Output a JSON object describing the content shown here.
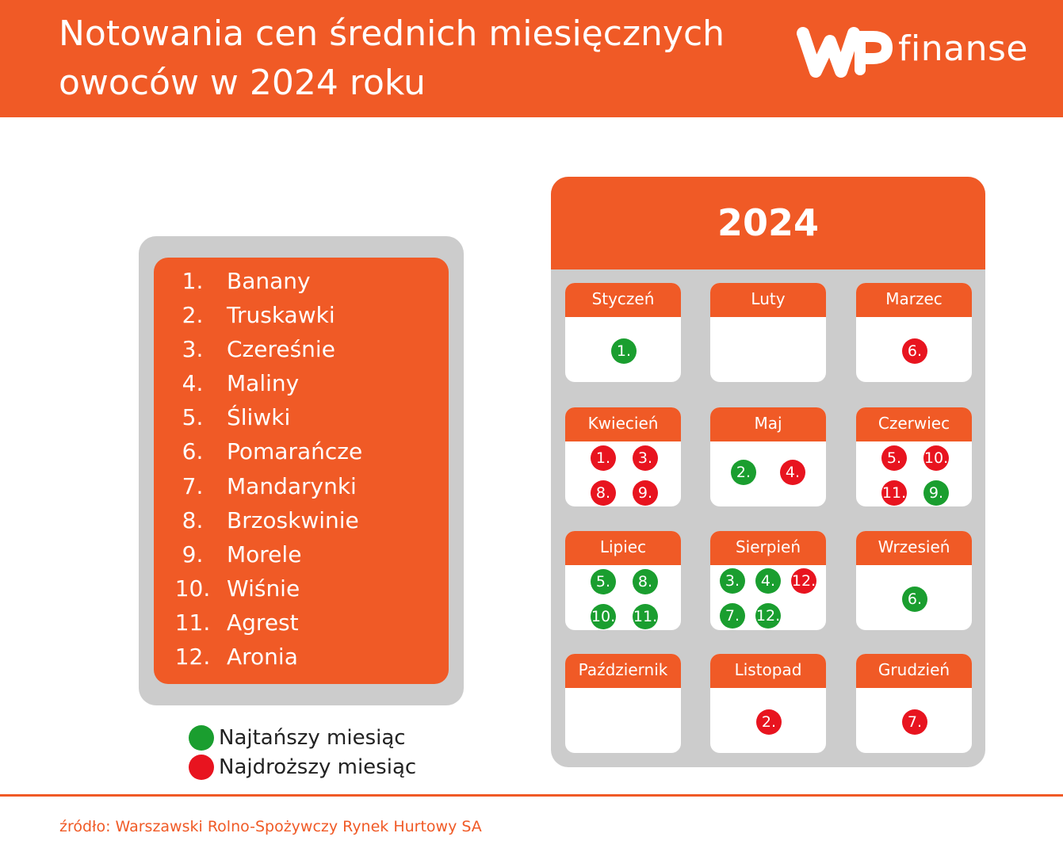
{
  "header": {
    "title_line1": "Notowania cen średnich miesięcznych",
    "title_line2": "owoców w 2024 roku",
    "logo_text": "finanse"
  },
  "fruits": [
    {
      "num": "1.",
      "name": "Banany"
    },
    {
      "num": "2.",
      "name": "Truskawki"
    },
    {
      "num": "3.",
      "name": "Czereśnie"
    },
    {
      "num": "4.",
      "name": "Maliny"
    },
    {
      "num": "5.",
      "name": "Śliwki"
    },
    {
      "num": "6.",
      "name": "Pomarańcze"
    },
    {
      "num": "7.",
      "name": "Mandarynki"
    },
    {
      "num": "8.",
      "name": "Brzoskwinie"
    },
    {
      "num": "9.",
      "name": "Morele"
    },
    {
      "num": "10.",
      "name": "Wiśnie"
    },
    {
      "num": "11.",
      "name": "Agrest"
    },
    {
      "num": "12.",
      "name": "Aronia"
    }
  ],
  "legend": {
    "cheapest": "Najtańszy miesiąc",
    "most_expensive": "Najdroższy miesiąc"
  },
  "calendar": {
    "year": "2024",
    "months": [
      {
        "name": "Styczeń",
        "marks": [
          {
            "n": "1.",
            "type": "cheapest"
          }
        ]
      },
      {
        "name": "Luty",
        "marks": []
      },
      {
        "name": "Marzec",
        "marks": [
          {
            "n": "6.",
            "type": "most_expensive"
          }
        ]
      },
      {
        "name": "Kwiecień",
        "marks": [
          {
            "n": "1.",
            "type": "most_expensive"
          },
          {
            "n": "3.",
            "type": "most_expensive"
          },
          {
            "n": "8.",
            "type": "most_expensive"
          },
          {
            "n": "9.",
            "type": "most_expensive"
          }
        ]
      },
      {
        "name": "Maj",
        "marks": [
          {
            "n": "2.",
            "type": "cheapest"
          },
          {
            "n": "4.",
            "type": "most_expensive"
          }
        ]
      },
      {
        "name": "Czerwiec",
        "marks": [
          {
            "n": "5.",
            "type": "most_expensive"
          },
          {
            "n": "10.",
            "type": "most_expensive"
          },
          {
            "n": "11.",
            "type": "most_expensive"
          },
          {
            "n": "9.",
            "type": "cheapest"
          }
        ]
      },
      {
        "name": "Lipiec",
        "marks": [
          {
            "n": "5.",
            "type": "cheapest"
          },
          {
            "n": "8.",
            "type": "cheapest"
          },
          {
            "n": "10.",
            "type": "cheapest"
          },
          {
            "n": "11.",
            "type": "cheapest"
          }
        ]
      },
      {
        "name": "Sierpień",
        "marks": [
          {
            "n": "3.",
            "type": "cheapest"
          },
          {
            "n": "4.",
            "type": "cheapest"
          },
          {
            "n": "12.",
            "type": "most_expensive"
          },
          {
            "n": "7.",
            "type": "cheapest"
          },
          {
            "n": "12.",
            "type": "cheapest"
          }
        ]
      },
      {
        "name": "Wrzesień",
        "marks": [
          {
            "n": "6.",
            "type": "cheapest"
          }
        ]
      },
      {
        "name": "Październik",
        "marks": []
      },
      {
        "name": "Listopad",
        "marks": [
          {
            "n": "2.",
            "type": "most_expensive"
          }
        ]
      },
      {
        "name": "Grudzień",
        "marks": [
          {
            "n": "7.",
            "type": "most_expensive"
          }
        ]
      }
    ]
  },
  "source": "źródło: Warszawski Rolno-Spożywczy Rynek Hurtowy SA",
  "colors": {
    "brand_orange": "#f05a26",
    "cheapest_green": "#1a9e2f",
    "most_expensive_red": "#e8141f",
    "frame_gray": "#cccccc"
  }
}
